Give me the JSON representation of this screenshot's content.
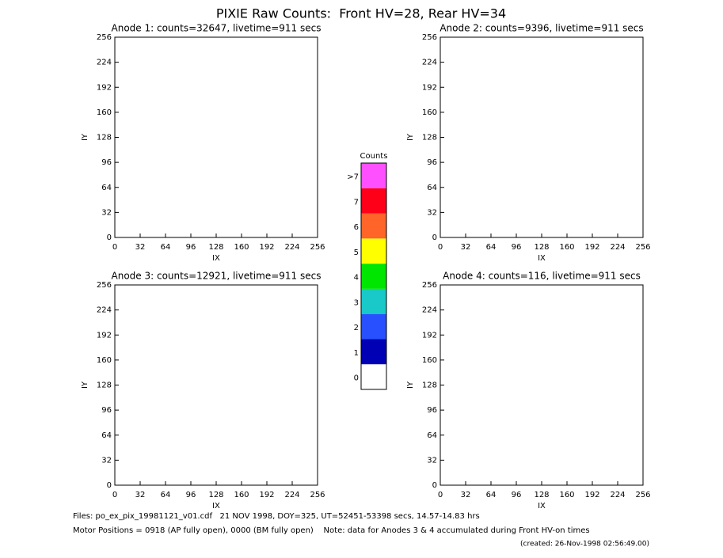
{
  "title": "PIXIE Raw Counts:  Front HV=28, Rear HV=34",
  "chart_data": [
    {
      "type": "heatmap",
      "title": "Anode 1: counts=32647, livetime=911 secs",
      "xlabel": "IX",
      "ylabel": "IY",
      "xlim": [
        0,
        256
      ],
      "ylim": [
        0,
        256
      ],
      "xticks": [
        0,
        32,
        64,
        96,
        128,
        160,
        192,
        224,
        256
      ],
      "yticks": [
        0,
        32,
        64,
        96,
        128,
        160,
        192,
        224,
        256
      ]
    },
    {
      "type": "heatmap",
      "title": "Anode 2: counts=9396, livetime=911 secs",
      "xlabel": "IX",
      "ylabel": "IY",
      "xlim": [
        0,
        256
      ],
      "ylim": [
        0,
        256
      ],
      "xticks": [
        0,
        32,
        64,
        96,
        128,
        160,
        192,
        224,
        256
      ],
      "yticks": [
        0,
        32,
        64,
        96,
        128,
        160,
        192,
        224,
        256
      ]
    },
    {
      "type": "heatmap",
      "title": "Anode 3: counts=12921, livetime=911 secs",
      "xlabel": "IX",
      "ylabel": "IY",
      "xlim": [
        0,
        256
      ],
      "ylim": [
        0,
        256
      ],
      "xticks": [
        0,
        32,
        64,
        96,
        128,
        160,
        192,
        224,
        256
      ],
      "yticks": [
        0,
        32,
        64,
        96,
        128,
        160,
        192,
        224,
        256
      ]
    },
    {
      "type": "heatmap",
      "title": "Anode 4: counts=116, livetime=911 secs",
      "xlabel": "IX",
      "ylabel": "IY",
      "xlim": [
        0,
        256
      ],
      "ylim": [
        0,
        256
      ],
      "xticks": [
        0,
        32,
        64,
        96,
        128,
        160,
        192,
        224,
        256
      ],
      "yticks": [
        0,
        32,
        64,
        96,
        128,
        160,
        192,
        224,
        256
      ]
    }
  ],
  "colorbar": {
    "title": "Counts",
    "labels": [
      0,
      1,
      2,
      3,
      4,
      5,
      6,
      7,
      ">7"
    ],
    "colors": [
      "#ffffff",
      "#0000b4",
      "#2850ff",
      "#19c8c8",
      "#00e600",
      "#ffff00",
      "#ff6428",
      "#ff0019",
      "#ff50ff"
    ]
  },
  "footer": [
    "Files: po_ex_pix_19981121_v01.cdf   21 NOV 1998, DOY=325, UT=52451-53398 secs, 14.57-14.83 hrs",
    "Motor Positions = 0918 (AP fully open), 0000 (BM fully open)    Note: data for Anodes 3 & 4 accumulated during Front HV-on times",
    "(created: 26-Nov-1998 02:56:49.00)"
  ]
}
